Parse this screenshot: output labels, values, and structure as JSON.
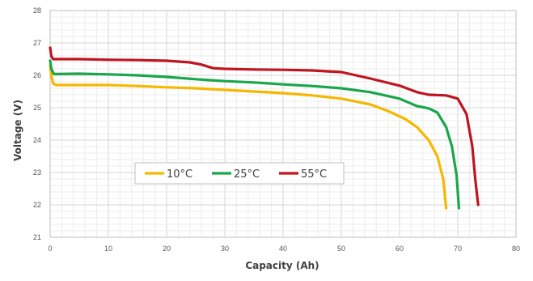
{
  "chart_data": {
    "type": "line",
    "title": "",
    "xlabel": "Capacity (Ah)",
    "ylabel": "Voltage (V)",
    "xlim": [
      0,
      80
    ],
    "ylim": [
      21,
      28
    ],
    "xticks": [
      0,
      10,
      20,
      30,
      40,
      50,
      60,
      70,
      80
    ],
    "yticks": [
      21,
      22,
      23,
      24,
      25,
      26,
      27,
      28
    ],
    "grid": true,
    "legend_position": "lower-left",
    "series": [
      {
        "name": "10°C",
        "color": "#f5b800",
        "points": [
          [
            0,
            26.3
          ],
          [
            0.2,
            26.0
          ],
          [
            0.5,
            25.75
          ],
          [
            1,
            25.7
          ],
          [
            5,
            25.7
          ],
          [
            10,
            25.7
          ],
          [
            15,
            25.67
          ],
          [
            20,
            25.63
          ],
          [
            25,
            25.6
          ],
          [
            30,
            25.55
          ],
          [
            35,
            25.5
          ],
          [
            40,
            25.45
          ],
          [
            45,
            25.38
          ],
          [
            50,
            25.28
          ],
          [
            55,
            25.1
          ],
          [
            58,
            24.9
          ],
          [
            61,
            24.65
          ],
          [
            63,
            24.4
          ],
          [
            65,
            24.0
          ],
          [
            66.5,
            23.5
          ],
          [
            67.5,
            22.8
          ],
          [
            68,
            21.9
          ]
        ]
      },
      {
        "name": "25°C",
        "color": "#1aa64a",
        "points": [
          [
            0,
            26.45
          ],
          [
            0.2,
            26.2
          ],
          [
            0.6,
            26.05
          ],
          [
            1,
            26.04
          ],
          [
            5,
            26.05
          ],
          [
            10,
            26.03
          ],
          [
            15,
            26.0
          ],
          [
            20,
            25.95
          ],
          [
            25,
            25.88
          ],
          [
            30,
            25.82
          ],
          [
            35,
            25.78
          ],
          [
            40,
            25.72
          ],
          [
            45,
            25.67
          ],
          [
            50,
            25.6
          ],
          [
            55,
            25.48
          ],
          [
            60,
            25.28
          ],
          [
            63,
            25.05
          ],
          [
            65,
            24.98
          ],
          [
            66.5,
            24.85
          ],
          [
            68,
            24.4
          ],
          [
            69,
            23.8
          ],
          [
            69.8,
            22.9
          ],
          [
            70.2,
            21.9
          ]
        ]
      },
      {
        "name": "55°C",
        "color": "#c0141f",
        "points": [
          [
            0,
            26.85
          ],
          [
            0.2,
            26.6
          ],
          [
            0.5,
            26.5
          ],
          [
            1,
            26.5
          ],
          [
            5,
            26.5
          ],
          [
            10,
            26.48
          ],
          [
            15,
            26.47
          ],
          [
            20,
            26.45
          ],
          [
            24,
            26.4
          ],
          [
            26,
            26.33
          ],
          [
            28,
            26.22
          ],
          [
            30,
            26.2
          ],
          [
            35,
            26.18
          ],
          [
            40,
            26.17
          ],
          [
            45,
            26.15
          ],
          [
            50,
            26.1
          ],
          [
            55,
            25.9
          ],
          [
            60,
            25.68
          ],
          [
            63,
            25.48
          ],
          [
            65,
            25.4
          ],
          [
            68,
            25.38
          ],
          [
            70,
            25.28
          ],
          [
            71.5,
            24.8
          ],
          [
            72.5,
            23.8
          ],
          [
            73,
            22.8
          ],
          [
            73.5,
            22.0
          ]
        ]
      }
    ]
  }
}
